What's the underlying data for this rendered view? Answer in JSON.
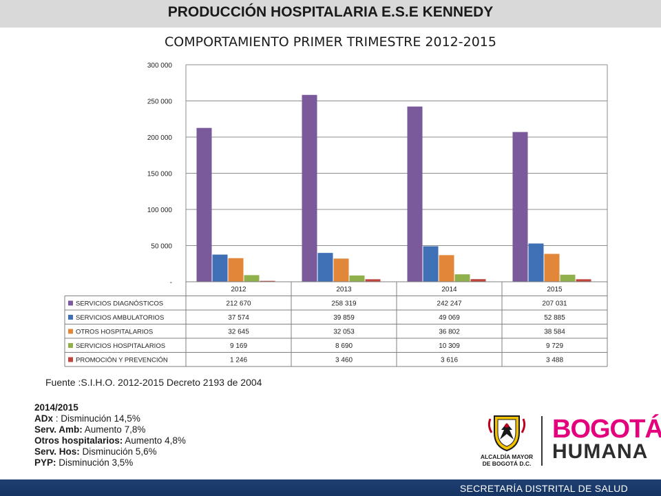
{
  "header": {
    "title": "PRODUCCIÓN HOSPITALARIA E.S.E KENNEDY"
  },
  "chart_data": {
    "type": "bar",
    "title": "COMPORTAMIENTO PRIMER TRIMESTRE 2012-2015",
    "categories": [
      "2012",
      "2013",
      "2014",
      "2015"
    ],
    "ylim": [
      0,
      300000
    ],
    "yticks": [
      0,
      50000,
      100000,
      150000,
      200000,
      250000,
      300000
    ],
    "ytick_labels": [
      "-",
      "50 000",
      "100 000",
      "150 000",
      "200 000",
      "250 000",
      "300 000"
    ],
    "grid": true,
    "legend_placement": "data-table",
    "series": [
      {
        "name": "SERVICIOS DIAGNÓSTICOS",
        "color": "#7a5a9a",
        "values": [
          212670,
          258319,
          242247,
          207031
        ],
        "labels": [
          "212 670",
          "258 319",
          "242 247",
          "207 031"
        ]
      },
      {
        "name": "SERVICIOS AMBULATORIOS",
        "color": "#3f6fb5",
        "values": [
          37574,
          39859,
          49069,
          52885
        ],
        "labels": [
          "37 574",
          "39 859",
          "49 069",
          "52 885"
        ]
      },
      {
        "name": "OTROS HOSPITALARIOS",
        "color": "#e2863a",
        "values": [
          32645,
          32053,
          36802,
          38584
        ],
        "labels": [
          "32 645",
          "32 053",
          "36 802",
          "38 584"
        ]
      },
      {
        "name": "SERVICIOS HOSPITALARIOS",
        "color": "#8fb04a",
        "values": [
          9169,
          8690,
          10309,
          9729
        ],
        "labels": [
          "9 169",
          "8 690",
          "10 309",
          "9 729"
        ]
      },
      {
        "name": "PROMOCIÓN Y PREVENCIÓN",
        "color": "#c0463d",
        "values": [
          1246,
          3460,
          3616,
          3488
        ],
        "labels": [
          "1 246",
          "3 460",
          "3 616",
          "3 488"
        ]
      }
    ]
  },
  "source": {
    "text": "Fuente :S.I.H.O. 2012-2015  Decreto 2193 de 2004"
  },
  "notes": {
    "heading": "2014/2015",
    "lines": [
      {
        "label": "ADx",
        "text": " : Disminución 14,5%"
      },
      {
        "label": "Serv. Amb:",
        "text": " Aumento 7,8%"
      },
      {
        "label": "Otros hospitalarios:",
        "text": " Aumento 4,8%"
      },
      {
        "label": "Serv. Hos:",
        "text": " Disminución 5,6%"
      },
      {
        "label": "PYP:",
        "text": " Disminución 3,5%"
      }
    ]
  },
  "logos": {
    "alcaldia_line1": "ALCALDÍA MAYOR",
    "alcaldia_line2": "DE BOGOTÁ D.C.",
    "brand_top": "BOGOTÁ",
    "brand_bottom": "HUMANA"
  },
  "footer": {
    "text": "SECRETARÍA DISTRITAL DE SALUD"
  }
}
